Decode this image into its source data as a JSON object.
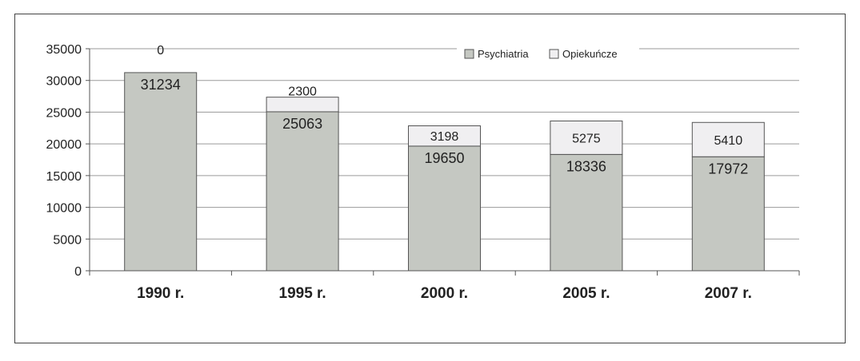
{
  "chart_data": {
    "type": "bar",
    "stacked": true,
    "categories": [
      "1990 r.",
      "1995 r.",
      "2000 r.",
      "2005 r.",
      "2007 r."
    ],
    "series": [
      {
        "name": "Psychiatria",
        "values": [
          31234,
          25063,
          19650,
          18336,
          17972
        ],
        "color": "#c5c8c2"
      },
      {
        "name": "Opiekuńcze",
        "values": [
          0,
          2300,
          3198,
          5275,
          5410
        ],
        "color": "#f0eff1"
      }
    ],
    "ylim": [
      0,
      35000
    ],
    "yticks": [
      0,
      5000,
      10000,
      15000,
      20000,
      25000,
      30000,
      35000
    ],
    "grid": true,
    "legend_position": "top-right",
    "colors": {
      "grid": "#9a9a9a",
      "bar_border": "#555555",
      "axis": "#555555"
    }
  }
}
